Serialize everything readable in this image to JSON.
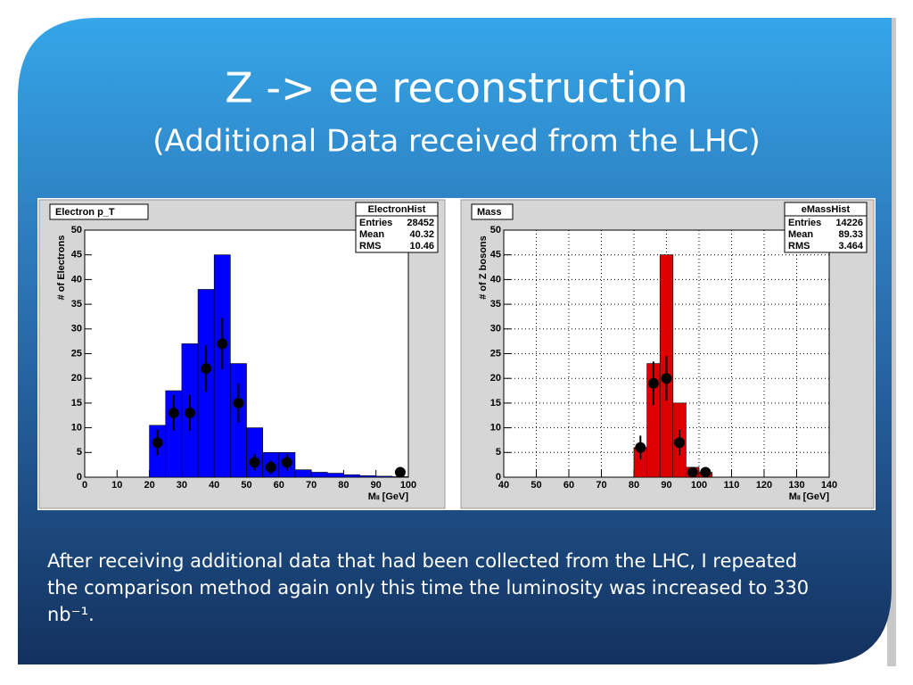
{
  "slide": {
    "title": "Z -> ee reconstruction",
    "subtitle": "(Additional Data received from the LHC)",
    "body": "After receiving additional data that had been collected from the LHC, I repeated the comparison method again only this time the luminosity was increased to 330 nb⁻¹."
  },
  "chart_data": [
    {
      "type": "histogram",
      "title": "Electron p_T",
      "ylabel": "# of Electrons",
      "xlabel": "Mₗₗ [GeV]",
      "bins": [
        20,
        25,
        30,
        35,
        40,
        45,
        50,
        55,
        60,
        65,
        70,
        75,
        80,
        85,
        90,
        95,
        100
      ],
      "counts": [
        10.5,
        17.5,
        27,
        38,
        45,
        23,
        10,
        5,
        5,
        1.5,
        1,
        0.8,
        0.5,
        0.3,
        0.2,
        0.1
      ],
      "color": "#0000ff",
      "points": {
        "x": [
          22.5,
          27.5,
          32.5,
          37.5,
          42.5,
          47.5,
          52.5,
          57.5,
          62.5,
          97.5
        ],
        "values": [
          7,
          13,
          13,
          22,
          27,
          15,
          3,
          2,
          3,
          1
        ],
        "errors": [
          2.6,
          3.6,
          3.6,
          4.7,
          5.2,
          3.9,
          1.7,
          1.4,
          1.7,
          1
        ]
      },
      "xlim": [
        0,
        100
      ],
      "ylim": [
        0,
        50
      ],
      "xticks": [
        0,
        10,
        20,
        30,
        40,
        50,
        60,
        70,
        80,
        90,
        100
      ],
      "yticks": [
        0,
        5,
        10,
        15,
        20,
        25,
        30,
        35,
        40,
        45,
        50
      ],
      "grid": false,
      "stats": {
        "name": "ElectronHist",
        "rows": [
          {
            "label": "Entries",
            "value": 28452
          },
          {
            "label": "Mean",
            "value": 40.32
          },
          {
            "label": "RMS",
            "value": 10.46
          }
        ]
      }
    },
    {
      "type": "histogram",
      "title": "Mass",
      "ylabel": "# of Z bosons",
      "xlabel": "Mₗₗ [GeV]",
      "bins": [
        80,
        84,
        88,
        92,
        96,
        100,
        104
      ],
      "counts": [
        6,
        23,
        45,
        15,
        2,
        1
      ],
      "color": "#dd0000",
      "points": {
        "x": [
          82,
          86,
          90,
          94,
          98,
          102
        ],
        "values": [
          6,
          19,
          20,
          7,
          1,
          1
        ],
        "errors": [
          2.4,
          4.4,
          4.5,
          2.6,
          1,
          1
        ]
      },
      "xlim": [
        40,
        140
      ],
      "ylim": [
        0,
        50
      ],
      "xticks": [
        40,
        50,
        60,
        70,
        80,
        90,
        100,
        110,
        120,
        130,
        140
      ],
      "yticks": [
        0,
        5,
        10,
        15,
        20,
        25,
        30,
        35,
        40,
        45,
        50
      ],
      "grid": true,
      "stats": {
        "name": "eMassHist",
        "rows": [
          {
            "label": "Entries",
            "value": 14226
          },
          {
            "label": "Mean",
            "value": 89.33
          },
          {
            "label": "RMS",
            "value": 3.464
          }
        ]
      }
    }
  ]
}
